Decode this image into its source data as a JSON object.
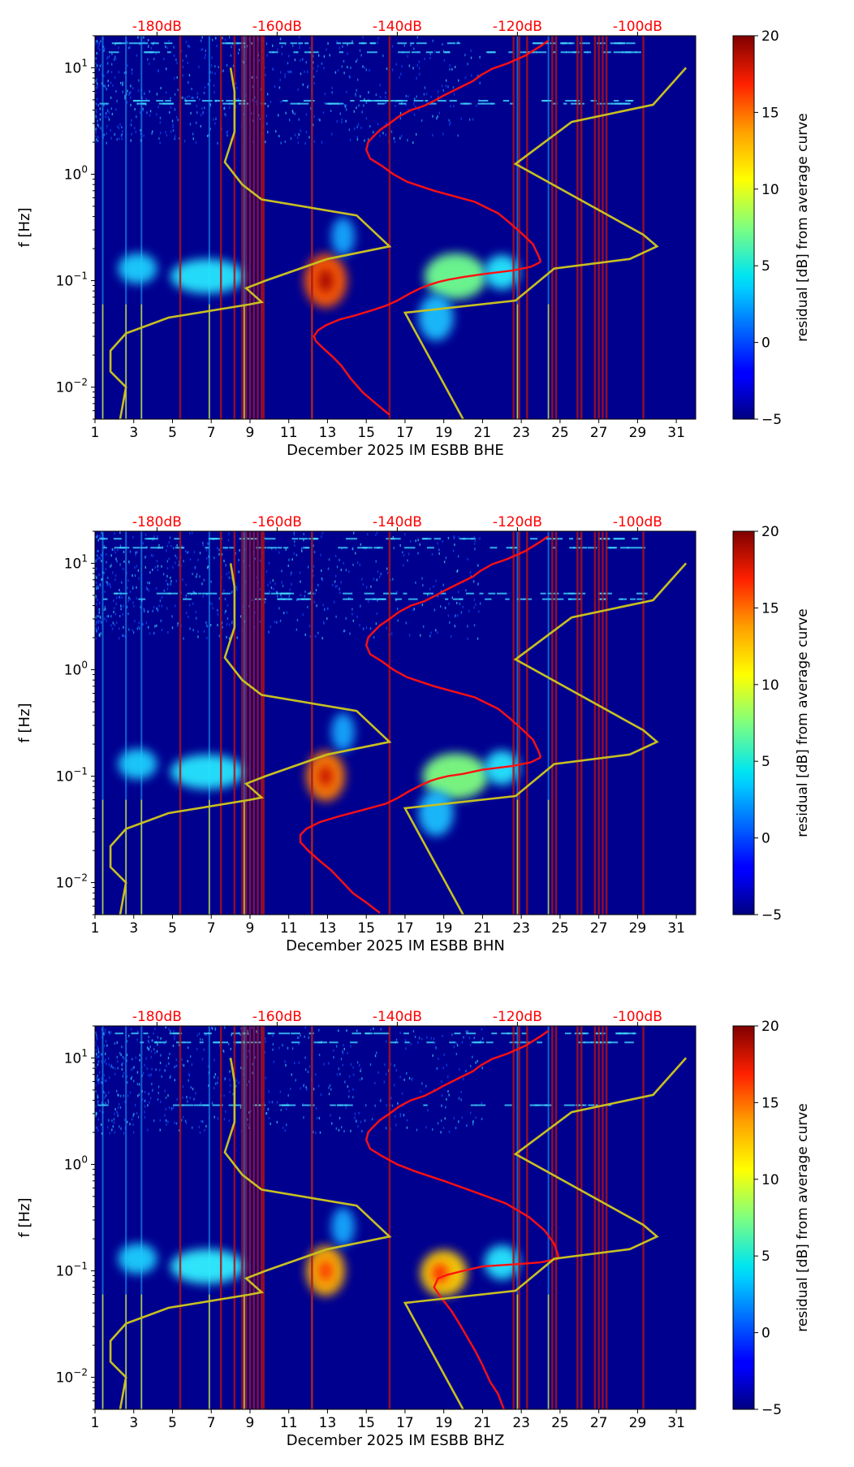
{
  "chart_data": [
    {
      "type": "heatmap",
      "channel": "BHE",
      "xlabel": "December 2025 IM ESBB  BHE",
      "ylabel": "f [Hz]",
      "x_ticks": [
        "1",
        "3",
        "5",
        "7",
        "9",
        "11",
        "13",
        "15",
        "17",
        "19",
        "21",
        "23",
        "25",
        "27",
        "29",
        "31"
      ],
      "xlim": [
        1,
        32
      ],
      "ylim_hz": [
        0.005,
        20
      ],
      "y_ticks": [
        {
          "value": 0.01,
          "base": "10",
          "exp": "−2"
        },
        {
          "value": 0.1,
          "base": "10",
          "exp": "−1"
        },
        {
          "value": 1,
          "base": "10",
          "exp": "0"
        },
        {
          "value": 10,
          "base": "10",
          "exp": "1"
        }
      ],
      "top_ticks": [
        {
          "x": 4.2,
          "label": "-180dB"
        },
        {
          "x": 10.4,
          "label": "-160dB"
        },
        {
          "x": 16.6,
          "label": "-140dB"
        },
        {
          "x": 22.8,
          "label": "-120dB"
        },
        {
          "x": 29.0,
          "label": "-100dB"
        }
      ],
      "colorbar": {
        "label": "residual [dB] from average curve",
        "range": [
          -5,
          20
        ],
        "ticks": [
          "-5",
          "0",
          "5",
          "10",
          "15",
          "20"
        ]
      },
      "red_vlines": [
        5.4,
        7.5,
        8.2,
        8.6,
        8.8,
        9.0,
        9.2,
        9.4,
        9.6,
        9.7,
        12.2,
        16.2,
        22.6,
        22.9,
        23.3,
        24.6,
        24.8,
        25.9,
        26.1,
        26.8,
        27.0,
        27.2,
        27.4,
        29.3
      ],
      "bright_vlines": [
        1.4,
        2.6,
        3.4,
        6.9,
        8.7,
        12.2,
        22.8,
        24.4
      ],
      "blobs": [
        {
          "x": 12.9,
          "f": 0.1,
          "rx": 1.1,
          "ry": 0.14,
          "color": "#ff5a00"
        },
        {
          "x": 12.9,
          "f": 0.1,
          "rx": 0.35,
          "ry": 0.06,
          "color": "#a00000"
        },
        {
          "x": 19.6,
          "f": 0.11,
          "rx": 1.6,
          "ry": 0.12,
          "color": "#6fff8f"
        },
        {
          "x": 6.8,
          "f": 0.11,
          "rx": 1.9,
          "ry": 0.09,
          "color": "#25e6ff"
        },
        {
          "x": 3.2,
          "f": 0.13,
          "rx": 1.0,
          "ry": 0.08,
          "color": "#1ccfff"
        },
        {
          "x": 22.0,
          "f": 0.12,
          "rx": 0.9,
          "ry": 0.09,
          "color": "#25e6ff"
        },
        {
          "x": 18.6,
          "f": 0.045,
          "rx": 0.9,
          "ry": 0.12,
          "color": "#1cbfff"
        },
        {
          "x": 13.8,
          "f": 0.26,
          "rx": 0.6,
          "ry": 0.1,
          "color": "#18a8ff"
        }
      ],
      "band_freqs": [
        4.6,
        4.9,
        14.0,
        17.0
      ],
      "avg_curve_top_x": [
        24.4,
        24.0,
        23.2,
        22.3,
        21.5,
        20.9,
        20.5,
        19.8,
        19.0,
        18.6,
        18.0,
        17.3,
        16.7,
        16.2,
        15.7,
        15.3,
        15.1,
        15.0,
        15.2,
        15.8,
        16.4,
        17.1,
        18.5,
        20.6,
        21.8,
        22.4,
        23.0,
        23.6,
        23.9
      ],
      "avg_curve_top_f": [
        18.0,
        16.0,
        13.0,
        11.0,
        9.8,
        8.5,
        7.5,
        6.5,
        5.5,
        5.0,
        4.4,
        4.0,
        3.5,
        3.0,
        2.6,
        2.2,
        2.0,
        1.7,
        1.4,
        1.2,
        1.0,
        0.85,
        0.7,
        0.55,
        0.43,
        0.35,
        0.28,
        0.22,
        0.17
      ],
      "avg_curve_bottom_x": [
        24.0,
        23.5,
        22.6,
        21.0,
        20.0,
        19.2,
        18.7,
        18.3,
        17.8,
        17.2,
        16.6,
        16.0,
        15.2,
        14.4,
        13.6,
        12.9,
        12.5,
        12.3,
        12.4,
        12.8,
        13.3,
        13.7,
        14.2,
        14.8,
        15.5,
        16.2
      ],
      "avg_curve_bottom_f": [
        0.15,
        0.135,
        0.125,
        0.115,
        0.108,
        0.102,
        0.097,
        0.092,
        0.085,
        0.075,
        0.065,
        0.058,
        0.052,
        0.047,
        0.043,
        0.038,
        0.034,
        0.03,
        0.027,
        0.023,
        0.019,
        0.016,
        0.012,
        0.009,
        0.007,
        0.0055
      ],
      "nlnm_x": [
        8.0,
        8.2,
        8.2,
        7.7,
        8.6,
        9.6,
        14.5,
        16.2,
        13.0,
        9.8,
        8.8,
        9.6,
        9.0,
        4.8,
        2.6,
        1.8,
        1.8,
        2.6,
        2.3
      ],
      "nlnm_f": [
        10.0,
        6.0,
        2.5,
        1.3,
        0.8,
        0.58,
        0.41,
        0.21,
        0.16,
        0.1,
        0.085,
        0.063,
        0.06,
        0.045,
        0.032,
        0.022,
        0.014,
        0.01,
        0.005
      ],
      "nhnm_x": [
        31.5,
        29.8,
        25.6,
        22.7,
        29.3,
        30.0,
        28.6,
        24.7,
        22.7,
        17.0,
        20.0
      ],
      "nhnm_f": [
        10.0,
        4.5,
        3.1,
        1.25,
        0.27,
        0.21,
        0.16,
        0.13,
        0.065,
        0.05,
        0.005
      ]
    },
    {
      "type": "heatmap",
      "channel": "BHN",
      "xlabel": "December 2025 IM ESBB  BHN",
      "ylabel": "f [Hz]",
      "x_ticks": [
        "1",
        "3",
        "5",
        "7",
        "9",
        "11",
        "13",
        "15",
        "17",
        "19",
        "21",
        "23",
        "25",
        "27",
        "29",
        "31"
      ],
      "xlim": [
        1,
        32
      ],
      "ylim_hz": [
        0.005,
        20
      ],
      "y_ticks": [
        {
          "value": 0.01,
          "base": "10",
          "exp": "−2"
        },
        {
          "value": 0.1,
          "base": "10",
          "exp": "−1"
        },
        {
          "value": 1,
          "base": "10",
          "exp": "0"
        },
        {
          "value": 10,
          "base": "10",
          "exp": "1"
        }
      ],
      "top_ticks": [
        {
          "x": 4.2,
          "label": "-180dB"
        },
        {
          "x": 10.4,
          "label": "-160dB"
        },
        {
          "x": 16.6,
          "label": "-140dB"
        },
        {
          "x": 22.8,
          "label": "-120dB"
        },
        {
          "x": 29.0,
          "label": "-100dB"
        }
      ],
      "colorbar": {
        "label": "residual [dB] from average curve",
        "range": [
          -5,
          20
        ],
        "ticks": [
          "-5",
          "0",
          "5",
          "10",
          "15",
          "20"
        ]
      },
      "red_vlines": [
        5.4,
        7.5,
        8.2,
        8.6,
        8.8,
        9.0,
        9.2,
        9.4,
        9.6,
        9.7,
        12.2,
        16.2,
        22.6,
        22.9,
        23.3,
        24.6,
        24.8,
        25.9,
        26.1,
        26.8,
        27.0,
        27.2,
        27.4,
        29.3
      ],
      "bright_vlines": [
        1.4,
        2.6,
        3.4,
        6.9,
        8.7,
        12.2,
        22.8,
        24.4
      ],
      "blobs": [
        {
          "x": 12.9,
          "f": 0.1,
          "rx": 1.0,
          "ry": 0.13,
          "color": "#ff7a00"
        },
        {
          "x": 12.9,
          "f": 0.1,
          "rx": 0.3,
          "ry": 0.05,
          "color": "#c00000"
        },
        {
          "x": 19.6,
          "f": 0.1,
          "rx": 1.7,
          "ry": 0.12,
          "color": "#7fff7f"
        },
        {
          "x": 6.8,
          "f": 0.11,
          "rx": 1.9,
          "ry": 0.09,
          "color": "#25e6ff"
        },
        {
          "x": 3.2,
          "f": 0.13,
          "rx": 1.0,
          "ry": 0.08,
          "color": "#1ccfff"
        },
        {
          "x": 22.0,
          "f": 0.12,
          "rx": 0.9,
          "ry": 0.09,
          "color": "#25e6ff"
        },
        {
          "x": 18.6,
          "f": 0.045,
          "rx": 0.9,
          "ry": 0.12,
          "color": "#1cbfff"
        },
        {
          "x": 13.8,
          "f": 0.26,
          "rx": 0.6,
          "ry": 0.1,
          "color": "#18a8ff"
        }
      ],
      "band_freqs": [
        4.6,
        5.2,
        14.0,
        17.0
      ],
      "avg_curve_top_x": [
        24.4,
        24.0,
        23.2,
        22.3,
        21.5,
        20.9,
        20.5,
        19.8,
        19.0,
        18.6,
        18.0,
        17.3,
        16.7,
        16.2,
        15.7,
        15.3,
        15.1,
        15.0,
        15.2,
        15.8,
        16.4,
        17.1,
        18.5,
        20.6,
        21.8,
        22.4,
        23.0,
        23.6,
        23.9
      ],
      "avg_curve_top_f": [
        18.0,
        16.0,
        13.0,
        11.0,
        9.8,
        8.5,
        7.5,
        6.5,
        5.5,
        5.0,
        4.4,
        4.0,
        3.5,
        3.0,
        2.6,
        2.2,
        2.0,
        1.7,
        1.4,
        1.2,
        1.0,
        0.85,
        0.7,
        0.55,
        0.43,
        0.35,
        0.28,
        0.22,
        0.17
      ],
      "avg_curve_bottom_x": [
        24.0,
        23.5,
        22.6,
        21.0,
        20.0,
        19.2,
        18.7,
        18.3,
        17.8,
        17.2,
        16.6,
        16.0,
        14.8,
        13.6,
        12.6,
        11.9,
        11.6,
        11.6,
        12.0,
        12.6,
        13.2,
        13.8,
        14.3,
        15.0,
        15.7
      ],
      "avg_curve_bottom_f": [
        0.15,
        0.135,
        0.125,
        0.115,
        0.105,
        0.1,
        0.095,
        0.09,
        0.082,
        0.072,
        0.062,
        0.055,
        0.048,
        0.042,
        0.037,
        0.032,
        0.028,
        0.024,
        0.02,
        0.016,
        0.013,
        0.01,
        0.008,
        0.0065,
        0.0052
      ],
      "nlnm_x": [
        8.0,
        8.2,
        8.2,
        7.7,
        8.6,
        9.6,
        14.5,
        16.2,
        13.0,
        9.8,
        8.8,
        9.6,
        9.0,
        4.8,
        2.6,
        1.8,
        1.8,
        2.6,
        2.3
      ],
      "nlnm_f": [
        10.0,
        6.0,
        2.5,
        1.3,
        0.8,
        0.58,
        0.41,
        0.21,
        0.16,
        0.1,
        0.085,
        0.063,
        0.06,
        0.045,
        0.032,
        0.022,
        0.014,
        0.01,
        0.005
      ],
      "nhnm_x": [
        31.5,
        29.8,
        25.6,
        22.7,
        29.3,
        30.0,
        28.6,
        24.7,
        22.7,
        17.0,
        20.0
      ],
      "nhnm_f": [
        10.0,
        4.5,
        3.1,
        1.25,
        0.27,
        0.21,
        0.16,
        0.13,
        0.065,
        0.05,
        0.005
      ]
    },
    {
      "type": "heatmap",
      "channel": "BHZ",
      "xlabel": "December 2025 IM ESBB  BHZ",
      "ylabel": "f [Hz]",
      "x_ticks": [
        "1",
        "3",
        "5",
        "7",
        "9",
        "11",
        "13",
        "15",
        "17",
        "19",
        "21",
        "23",
        "25",
        "27",
        "29",
        "31"
      ],
      "xlim": [
        1,
        32
      ],
      "ylim_hz": [
        0.005,
        20
      ],
      "y_ticks": [
        {
          "value": 0.01,
          "base": "10",
          "exp": "−2"
        },
        {
          "value": 0.1,
          "base": "10",
          "exp": "−1"
        },
        {
          "value": 1,
          "base": "10",
          "exp": "0"
        },
        {
          "value": 10,
          "base": "10",
          "exp": "1"
        }
      ],
      "top_ticks": [
        {
          "x": 4.2,
          "label": "-180dB"
        },
        {
          "x": 10.4,
          "label": "-160dB"
        },
        {
          "x": 16.6,
          "label": "-140dB"
        },
        {
          "x": 22.8,
          "label": "-120dB"
        },
        {
          "x": 29.0,
          "label": "-100dB"
        }
      ],
      "colorbar": {
        "label": "residual [dB] from average curve",
        "range": [
          -5,
          20
        ],
        "ticks": [
          "-5",
          "0",
          "5",
          "10",
          "15",
          "20"
        ]
      },
      "red_vlines": [
        5.4,
        7.5,
        8.2,
        8.6,
        8.8,
        9.0,
        9.2,
        9.4,
        9.6,
        9.7,
        12.2,
        16.2,
        22.6,
        22.9,
        23.3,
        24.6,
        24.8,
        25.9,
        26.1,
        26.8,
        27.0,
        27.2,
        27.4,
        29.3
      ],
      "bright_vlines": [
        1.4,
        2.6,
        3.4,
        6.9,
        8.7,
        12.2,
        22.8,
        24.4
      ],
      "blobs": [
        {
          "x": 12.9,
          "f": 0.1,
          "rx": 1.0,
          "ry": 0.13,
          "color": "#ffb000"
        },
        {
          "x": 12.9,
          "f": 0.1,
          "rx": 0.3,
          "ry": 0.05,
          "color": "#ff2000"
        },
        {
          "x": 19.0,
          "f": 0.095,
          "rx": 1.2,
          "ry": 0.12,
          "color": "#ffcf00"
        },
        {
          "x": 18.8,
          "f": 0.095,
          "rx": 0.4,
          "ry": 0.05,
          "color": "#ff2000"
        },
        {
          "x": 6.8,
          "f": 0.11,
          "rx": 1.9,
          "ry": 0.09,
          "color": "#30f0ff"
        },
        {
          "x": 3.2,
          "f": 0.13,
          "rx": 1.0,
          "ry": 0.08,
          "color": "#1ccfff"
        },
        {
          "x": 22.0,
          "f": 0.12,
          "rx": 0.9,
          "ry": 0.09,
          "color": "#25e6ff"
        },
        {
          "x": 13.8,
          "f": 0.26,
          "rx": 0.6,
          "ry": 0.1,
          "color": "#18a8ff"
        }
      ],
      "band_freqs": [
        3.6,
        14.0,
        17.0
      ],
      "avg_curve_top_x": [
        24.4,
        24.0,
        23.2,
        22.3,
        21.5,
        20.9,
        20.5,
        19.8,
        19.0,
        18.6,
        18.0,
        17.3,
        16.7,
        16.2,
        15.7,
        15.3,
        15.1,
        15.0,
        15.2,
        15.8,
        16.6,
        17.6,
        19.0,
        20.6,
        22.2,
        23.4,
        24.2,
        24.7,
        24.9
      ],
      "avg_curve_top_f": [
        18.0,
        16.0,
        13.0,
        11.0,
        9.8,
        8.5,
        7.5,
        6.5,
        5.5,
        5.0,
        4.4,
        4.0,
        3.5,
        3.0,
        2.6,
        2.2,
        2.0,
        1.7,
        1.4,
        1.2,
        1.0,
        0.85,
        0.7,
        0.55,
        0.43,
        0.32,
        0.24,
        0.18,
        0.14
      ],
      "avg_curve_bottom_x": [
        24.9,
        24.0,
        22.6,
        21.0,
        20.0,
        19.2,
        18.7,
        18.5,
        18.9,
        19.4,
        19.8,
        20.2,
        20.6,
        21.0,
        21.4,
        21.8,
        22.1
      ],
      "avg_curve_bottom_f": [
        0.13,
        0.12,
        0.115,
        0.11,
        0.1,
        0.092,
        0.085,
        0.07,
        0.055,
        0.042,
        0.032,
        0.024,
        0.018,
        0.013,
        0.009,
        0.007,
        0.005
      ],
      "nlnm_x": [
        8.0,
        8.2,
        8.2,
        7.7,
        8.6,
        9.6,
        14.5,
        16.2,
        13.0,
        9.8,
        8.8,
        9.6,
        9.0,
        4.8,
        2.6,
        1.8,
        1.8,
        2.6,
        2.3
      ],
      "nlnm_f": [
        10.0,
        6.0,
        2.5,
        1.3,
        0.8,
        0.58,
        0.41,
        0.21,
        0.16,
        0.1,
        0.085,
        0.063,
        0.06,
        0.045,
        0.032,
        0.022,
        0.014,
        0.01,
        0.005
      ],
      "nhnm_x": [
        31.5,
        29.8,
        25.6,
        22.7,
        29.3,
        30.0,
        28.6,
        24.7,
        22.7,
        17.0,
        20.0
      ],
      "nhnm_f": [
        10.0,
        4.5,
        3.1,
        1.25,
        0.27,
        0.21,
        0.16,
        0.13,
        0.065,
        0.05,
        0.005
      ]
    }
  ],
  "colors": {
    "background": "#00008f",
    "avg_curve": "#ff1010",
    "noise_model": "#c8c020",
    "event_line": "#b01010",
    "top_label": "#ff0000",
    "axis": "#000000"
  }
}
